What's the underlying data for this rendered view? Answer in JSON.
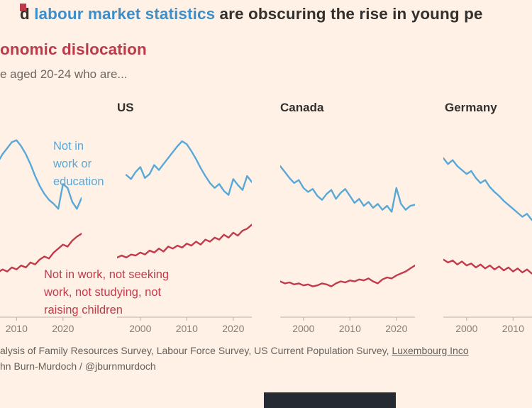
{
  "page": {
    "title": {
      "prefix": "d ",
      "highlight_blue": "labour market statistics",
      "suffix": " are obscuring the rise in young pe",
      "line2_red": "onomic dislocation"
    },
    "subtitle": "e aged 20-24 who are...",
    "footer": {
      "source_text": "alysis of Family Resources Survey, Labour Force Survey, US Current Population Survey, ",
      "source_link": "Luxembourg Inco",
      "byline": "hn Burn-Murdoch / @jburnmurdoch"
    }
  },
  "colors": {
    "background": "#FFF1E5",
    "title_text": "#33302E",
    "highlight_blue": "#3E8FC9",
    "highlight_red": "#BE3A4A",
    "line_blue": "#58A8D8",
    "line_red": "#C23B4B",
    "subtitle_gray": "#6E6862",
    "footer_gray": "#66605C",
    "axis_gray": "#B9B1A4",
    "tick_label_gray": "#857E72",
    "navy_block": "#262A33"
  },
  "chart_data": {
    "type": "line",
    "layout": "small-multiples",
    "xlabel": "",
    "ylabel": "",
    "xlim": [
      1995,
      2024
    ],
    "ylim": [
      0,
      18.7
    ],
    "xticks": [
      2000,
      2010,
      2020
    ],
    "grid": false,
    "legend": "inline-annotations",
    "x": [
      1995,
      1996,
      1997,
      1998,
      1999,
      2000,
      2001,
      2002,
      2003,
      2004,
      2005,
      2006,
      2007,
      2008,
      2009,
      2010,
      2011,
      2012,
      2013,
      2014,
      2015,
      2016,
      2017,
      2018,
      2019,
      2020,
      2021,
      2022,
      2023,
      2024
    ],
    "panels": [
      {
        "title": "",
        "series": [
          {
            "name": "Not in work or education",
            "color": "#58A8D8",
            "values": [
              14.8,
              15.0,
              15.3,
              15.6,
              15.9,
              16.2,
              15.8,
              15.4,
              15.1,
              14.7,
              15.2,
              15.6,
              16.4,
              17.0,
              17.6,
              17.8,
              17.2,
              16.4,
              15.4,
              14.2,
              13.2,
              12.4,
              11.8,
              11.4,
              10.9,
              13.4,
              13.0,
              11.6,
              10.9,
              12.0
            ]
          },
          {
            "name": "Not in work, not seeking work, not studying, not raising children",
            "color": "#C23B4B",
            "values": [
              4.6,
              4.4,
              4.7,
              4.3,
              4.6,
              4.4,
              4.5,
              4.3,
              4.6,
              4.4,
              4.7,
              4.5,
              4.8,
              4.6,
              5.0,
              4.8,
              5.2,
              5.0,
              5.5,
              5.3,
              5.8,
              6.1,
              5.9,
              6.5,
              6.9,
              7.3,
              7.1,
              7.7,
              8.1,
              8.4
            ]
          }
        ],
        "annotation": {
          "color": "#58A8D8",
          "lines": [
            "Not in",
            "work or",
            "education"
          ]
        }
      },
      {
        "title": "US",
        "series": [
          {
            "name": "Not in work or education",
            "color": "#58A8D8",
            "values": [
              null,
              null,
              14.3,
              13.9,
              14.6,
              15.1,
              14.0,
              14.4,
              15.3,
              14.8,
              15.4,
              16.0,
              16.6,
              17.2,
              17.7,
              17.4,
              16.7,
              15.9,
              15.0,
              14.2,
              13.5,
              13.0,
              13.4,
              12.7,
              12.3,
              13.9,
              13.3,
              12.8,
              14.2,
              13.6
            ]
          },
          {
            "name": "Not in work, not seeking work, not studying, not raising children",
            "color": "#C23B4B",
            "values": [
              6.0,
              6.2,
              6.0,
              6.3,
              6.2,
              6.5,
              6.3,
              6.7,
              6.5,
              6.9,
              6.6,
              7.1,
              6.9,
              7.2,
              7.0,
              7.4,
              7.2,
              7.6,
              7.3,
              7.8,
              7.6,
              8.0,
              7.8,
              8.3,
              8.0,
              8.5,
              8.2,
              8.7,
              8.9,
              9.3
            ]
          }
        ],
        "annotation": {
          "color": "#C23B4B",
          "lines": [
            "Not in work, not seeking",
            "work, not studying, not",
            "raising children"
          ]
        }
      },
      {
        "title": "Canada",
        "series": [
          {
            "name": "Not in work or education",
            "color": "#58A8D8",
            "values": [
              15.2,
              14.6,
              14.0,
              13.5,
              13.8,
              13.0,
              12.6,
              12.9,
              12.2,
              11.8,
              12.4,
              12.8,
              11.9,
              12.5,
              12.9,
              12.2,
              11.5,
              11.9,
              11.2,
              11.6,
              11.0,
              11.4,
              10.8,
              11.2,
              10.6,
              13.0,
              11.4,
              10.8,
              11.2,
              11.3
            ]
          },
          {
            "name": "Not in work, not seeking work, not studying, not raising children",
            "color": "#C23B4B",
            "values": [
              3.6,
              3.4,
              3.5,
              3.3,
              3.4,
              3.2,
              3.3,
              3.1,
              3.2,
              3.4,
              3.3,
              3.1,
              3.4,
              3.6,
              3.5,
              3.7,
              3.6,
              3.8,
              3.7,
              3.9,
              3.6,
              3.4,
              3.8,
              4.0,
              3.9,
              4.2,
              4.4,
              4.6,
              4.9,
              5.2
            ]
          }
        ],
        "annotation": null
      },
      {
        "title": "Germany",
        "series": [
          {
            "name": "Not in work or education",
            "color": "#58A8D8",
            "values": [
              16.0,
              15.4,
              15.8,
              15.2,
              14.8,
              14.4,
              14.7,
              14.0,
              13.5,
              13.8,
              13.1,
              12.6,
              12.2,
              11.7,
              11.3,
              10.9,
              10.5,
              10.1,
              10.4,
              9.8,
              9.4,
              9.7,
              9.2,
              8.8,
              9.0,
              8.5,
              8.8,
              8.3,
              8.0,
              7.8
            ]
          },
          {
            "name": "Not in work, not seeking work, not studying, not raising children",
            "color": "#C23B4B",
            "values": [
              5.8,
              5.5,
              5.7,
              5.3,
              5.6,
              5.2,
              5.4,
              5.0,
              5.3,
              4.9,
              5.2,
              4.8,
              5.1,
              4.7,
              5.0,
              4.6,
              4.9,
              4.5,
              4.8,
              4.4,
              4.7,
              4.3,
              4.6,
              4.2,
              4.5,
              4.1,
              4.4,
              4.0,
              4.3,
              4.2
            ]
          }
        ],
        "annotation": null
      }
    ]
  }
}
